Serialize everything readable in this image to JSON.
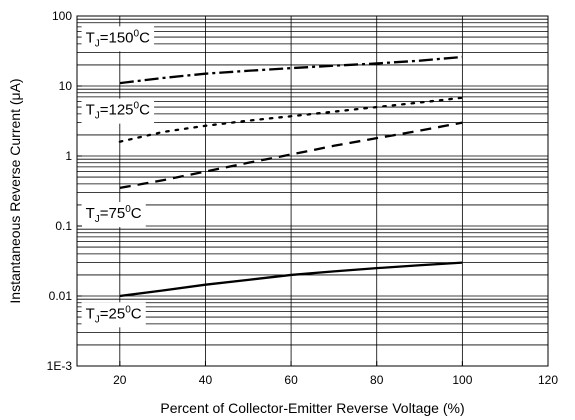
{
  "chart_data": {
    "type": "line",
    "title": "",
    "xlabel": "Percent of Collector-Emitter Reverse Voltage (%)",
    "ylabel": "Instantaneous Reverse Current (μA)",
    "xlim": [
      10,
      120
    ],
    "ylim": [
      0.001,
      100
    ],
    "yscale": "log",
    "grid": true,
    "legend": "none",
    "x_ticks": [
      20,
      40,
      60,
      80,
      100,
      120
    ],
    "x_tick_labels": [
      "20",
      "40",
      "60",
      "80",
      "100",
      "120"
    ],
    "y_ticks": [
      0.001,
      0.01,
      0.1,
      1,
      10,
      100
    ],
    "y_tick_labels": [
      "1E-3",
      "0.01",
      "0.1",
      "1",
      "10",
      "100"
    ],
    "series": [
      {
        "label": "150",
        "dash": "dash-dot",
        "x": [
          20,
          30,
          40,
          50,
          60,
          70,
          80,
          90,
          100
        ],
        "y": [
          11,
          13,
          15,
          16.5,
          18,
          19.5,
          21,
          23,
          26
        ]
      },
      {
        "label": "125",
        "dash": "dotted",
        "x": [
          20,
          30,
          40,
          50,
          60,
          70,
          80,
          90,
          100
        ],
        "y": [
          1.6,
          2.2,
          2.7,
          3.2,
          3.7,
          4.3,
          5.0,
          5.8,
          6.8
        ]
      },
      {
        "label": "75",
        "dash": "dashed",
        "x": [
          20,
          30,
          40,
          50,
          60,
          70,
          80,
          90,
          100
        ],
        "y": [
          0.35,
          0.45,
          0.6,
          0.8,
          1.05,
          1.4,
          1.8,
          2.3,
          3.0
        ]
      },
      {
        "label": "25",
        "dash": "solid",
        "x": [
          20,
          30,
          40,
          50,
          60,
          70,
          80,
          90,
          100
        ],
        "y": [
          0.01,
          0.012,
          0.0145,
          0.017,
          0.02,
          0.0225,
          0.025,
          0.0275,
          0.03
        ]
      }
    ],
    "annotations": [
      {
        "prefix": "T",
        "sub": "J",
        "eq": "=",
        "temp": "150",
        "sup": "0",
        "unit": "C",
        "x": 12,
        "y": 42
      },
      {
        "prefix": "T",
        "sub": "J",
        "eq": "=",
        "temp": "125",
        "sup": "0",
        "unit": "C",
        "x": 12,
        "y": 3.9
      },
      {
        "prefix": "T",
        "sub": "J",
        "eq": "=",
        "temp": "75",
        "sup": "0",
        "unit": "C",
        "x": 12,
        "y": 0.13
      },
      {
        "prefix": "T",
        "sub": "J",
        "eq": "=",
        "temp": "25",
        "sup": "0",
        "unit": "C",
        "x": 12,
        "y": 0.0048
      }
    ]
  }
}
